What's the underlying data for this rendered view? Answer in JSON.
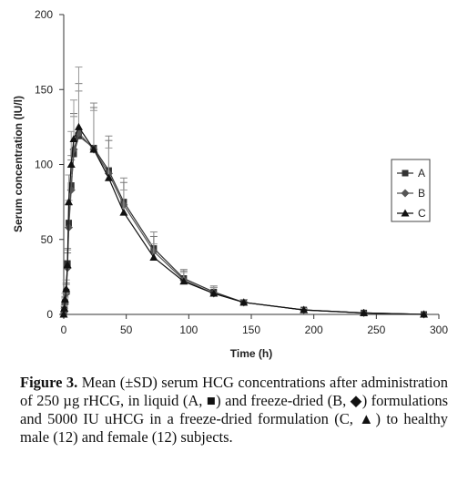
{
  "chart_data": {
    "type": "line",
    "title": "",
    "xlabel": "Time (h)",
    "ylabel": "Serum concentration (IU/l)",
    "xlim": [
      0,
      300
    ],
    "ylim": [
      0,
      200
    ],
    "xticks": [
      "0",
      "50",
      "100",
      "150",
      "200",
      "250",
      "300"
    ],
    "yticks": [
      "0",
      "50",
      "100",
      "150",
      "200"
    ],
    "grid": false,
    "legend_position": "right",
    "series": [
      {
        "name": "A",
        "marker": "square",
        "x": [
          0,
          0.5,
          1,
          2,
          3,
          4,
          6,
          8,
          12,
          24,
          36,
          48,
          72,
          96,
          120,
          144,
          192,
          240,
          288
        ],
        "y": [
          0,
          3,
          8,
          15,
          34,
          61,
          86,
          107,
          119,
          111,
          96,
          75,
          44,
          24,
          15,
          8,
          3,
          1,
          0
        ],
        "sd": [
          0,
          2,
          4,
          6,
          10,
          15,
          20,
          25,
          30,
          30,
          23,
          16,
          11,
          6,
          4,
          2,
          1,
          0.5,
          0
        ]
      },
      {
        "name": "B",
        "marker": "diamond",
        "x": [
          0,
          0.5,
          1,
          2,
          3,
          4,
          6,
          8,
          12,
          24,
          36,
          48,
          72,
          96,
          120,
          144,
          192,
          240,
          288
        ],
        "y": [
          0,
          2,
          7,
          14,
          31,
          58,
          83,
          110,
          121,
          110,
          94,
          73,
          42,
          23,
          14,
          8,
          3,
          1,
          0
        ],
        "sd": [
          0,
          2,
          4,
          6,
          10,
          15,
          20,
          24,
          33,
          28,
          22,
          15,
          10,
          6,
          4,
          2,
          1,
          0.5,
          0
        ]
      },
      {
        "name": "C",
        "marker": "triangle",
        "x": [
          0,
          0.5,
          1,
          2,
          3,
          4,
          6,
          8,
          12,
          24,
          36,
          48,
          72,
          96,
          120,
          144,
          192,
          240,
          288
        ],
        "y": [
          0,
          4,
          10,
          17,
          33,
          75,
          100,
          117,
          125,
          110,
          91,
          68,
          38,
          22,
          14,
          8,
          3,
          1,
          0
        ],
        "sd": [
          0,
          2,
          4,
          6,
          10,
          18,
          22,
          26,
          40,
          26,
          20,
          15,
          9,
          6,
          4,
          2,
          1,
          0.5,
          0
        ]
      }
    ]
  },
  "caption": {
    "label": "Figure 3.",
    "text": " Mean (±SD) serum HCG concentrations after administration of 250 µg rHCG, in liquid (A, ■) and freeze-dried (B, ◆) formulations and 5000 IU uHCG in a freeze-dried formulation (C, ▲) to healthy male (12) and female (12) subjects."
  }
}
